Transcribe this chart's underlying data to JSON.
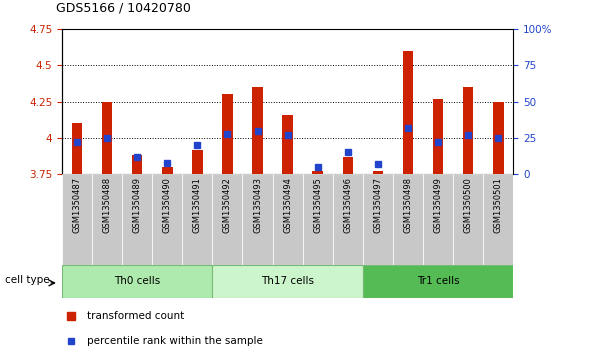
{
  "title": "GDS5166 / 10420780",
  "samples": [
    "GSM1350487",
    "GSM1350488",
    "GSM1350489",
    "GSM1350490",
    "GSM1350491",
    "GSM1350492",
    "GSM1350493",
    "GSM1350494",
    "GSM1350495",
    "GSM1350496",
    "GSM1350497",
    "GSM1350498",
    "GSM1350499",
    "GSM1350500",
    "GSM1350501"
  ],
  "transformed_counts": [
    4.1,
    4.25,
    3.88,
    3.8,
    3.92,
    4.3,
    4.35,
    4.16,
    3.77,
    3.87,
    3.77,
    4.6,
    4.27,
    4.35,
    4.25
  ],
  "percentile_ranks": [
    22,
    25,
    12,
    8,
    20,
    28,
    30,
    27,
    5,
    15,
    7,
    32,
    22,
    27,
    25
  ],
  "cell_types": [
    {
      "label": "Th0 cells",
      "start": 0,
      "end": 5,
      "color": "#aeeaae"
    },
    {
      "label": "Th17 cells",
      "start": 5,
      "end": 10,
      "color": "#ccf5cc"
    },
    {
      "label": "Tr1 cells",
      "start": 10,
      "end": 15,
      "color": "#55bb55"
    }
  ],
  "ylim_left": [
    3.75,
    4.75
  ],
  "ylim_right": [
    0,
    100
  ],
  "yticks_left": [
    3.75,
    4.0,
    4.25,
    4.5,
    4.75
  ],
  "ytick_labels_left": [
    "3.75",
    "4",
    "4.25",
    "4.5",
    "4.75"
  ],
  "yticks_right": [
    0,
    25,
    50,
    75,
    100
  ],
  "ytick_labels_right": [
    "0",
    "25",
    "50",
    "75",
    "100%"
  ],
  "bar_color": "#cc2200",
  "percentile_color": "#2244cc",
  "bar_width": 0.35,
  "xtick_bg": "#c8c8c8",
  "legend_items": [
    "transformed count",
    "percentile rank within the sample"
  ]
}
